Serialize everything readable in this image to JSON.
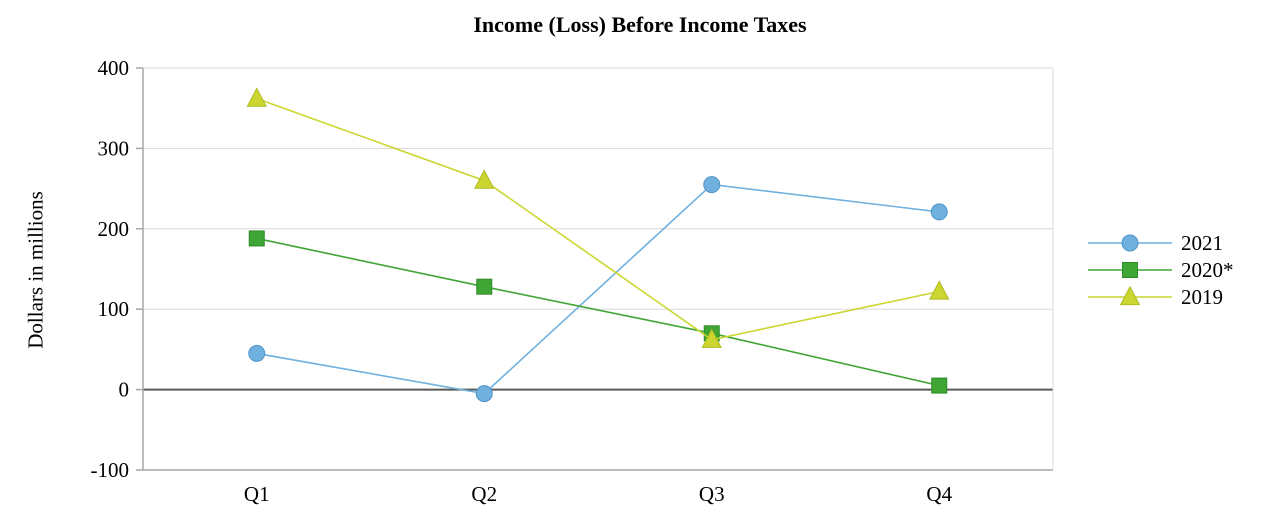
{
  "chart_data": {
    "type": "line",
    "title": "Income (Loss) Before Income Taxes",
    "ylabel": "Dollars in millions",
    "xlabel": "",
    "categories": [
      "Q1",
      "Q2",
      "Q3",
      "Q4"
    ],
    "series": [
      {
        "name": "2021",
        "marker": "circle",
        "color": "#6fb0de",
        "marker_stroke": "#4f94c9",
        "values": [
          45,
          -5,
          255,
          221
        ]
      },
      {
        "name": "2020*",
        "marker": "square",
        "color": "#3fa535",
        "marker_stroke": "#2f8b26",
        "values": [
          188,
          128,
          70,
          5
        ]
      },
      {
        "name": "2019",
        "marker": "triangle",
        "color": "#ccd630",
        "marker_stroke": "#aeba1f",
        "values": [
          362,
          260,
          62,
          122
        ]
      }
    ],
    "ylim": [
      -100,
      400
    ],
    "yticks": [
      -100,
      0,
      100,
      200,
      300,
      400
    ],
    "grid": "horizontal",
    "legend_position": "right",
    "colors": {
      "gridline": "#d9d9d9",
      "zero_line": "#595959",
      "axis": "#a6a6a6",
      "text": "#000000",
      "background": "#ffffff"
    }
  }
}
